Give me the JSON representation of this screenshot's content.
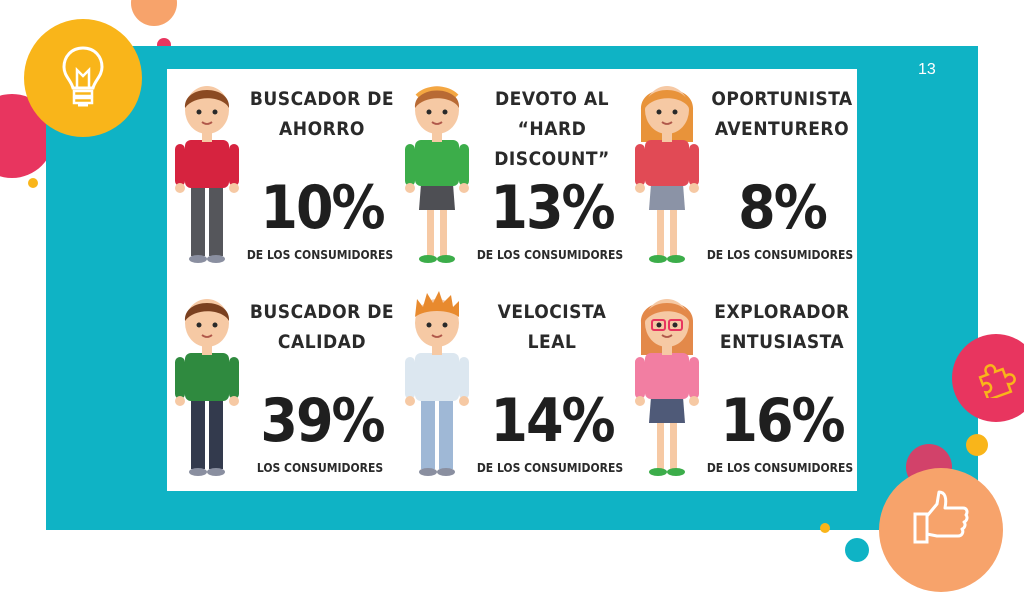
{
  "slide": {
    "page_number": "13"
  },
  "segments": [
    {
      "title": "BUSCADOR DE\nAHORRO",
      "percent": "10%",
      "caption": "DE LOS CONSUMIDORES",
      "figure": {
        "hair": "#8b4a22",
        "skin": "#f6c9a4",
        "shirt": "#d6233f",
        "bottom": "#55565b",
        "type": "boy"
      }
    },
    {
      "title": "DEVOTO AL\n“HARD DISCOUNT”",
      "percent": "13%",
      "caption": "DE LOS CONSUMIDORES",
      "figure": {
        "hair": "#b86a34",
        "skin": "#f6c9a4",
        "shirt": "#3cad4a",
        "bottom": "#4e4f54",
        "type": "girl-headband"
      }
    },
    {
      "title": "OPORTUNISTA\nAVENTURERO",
      "percent": "8%",
      "caption": "DE LOS CONSUMIDORES",
      "figure": {
        "hair": "#e8933a",
        "skin": "#f6c9a4",
        "shirt": "#e14a55",
        "bottom": "#8b93a6",
        "type": "girl-long"
      }
    },
    {
      "title": "BUSCADOR DE\nCALIDAD",
      "percent": "39%",
      "caption": "LOS CONSUMIDORES",
      "figure": {
        "hair": "#7a4020",
        "skin": "#f6c9a4",
        "shirt": "#2f8a3f",
        "bottom": "#333a4d",
        "type": "boy"
      }
    },
    {
      "title": "VELOCISTA\nLEAL",
      "percent": "14%",
      "caption": "DE LOS CONSUMIDORES",
      "figure": {
        "hair": "#e88a2e",
        "skin": "#f6c9a4",
        "shirt": "#dce7f0",
        "bottom": "#9fb8d6",
        "type": "boy-spiky"
      }
    },
    {
      "title": "EXPLORADOR\nENTUSIASTA",
      "percent": "16%",
      "caption": "DE LOS CONSUMIDORES",
      "figure": {
        "hair": "#e3894a",
        "skin": "#f6c9a4",
        "shirt": "#f27ea2",
        "bottom": "#4f5a78",
        "type": "girl-glasses"
      }
    }
  ],
  "decor": {
    "colors": {
      "teal": "#0fb3c5",
      "yellow": "#f9b51a",
      "pink": "#e8355f",
      "orange": "#f59a4a",
      "salmon": "#f7a36b"
    },
    "icons": [
      "lightbulb-icon",
      "puzzle-icon",
      "thumbs-up-icon"
    ]
  }
}
